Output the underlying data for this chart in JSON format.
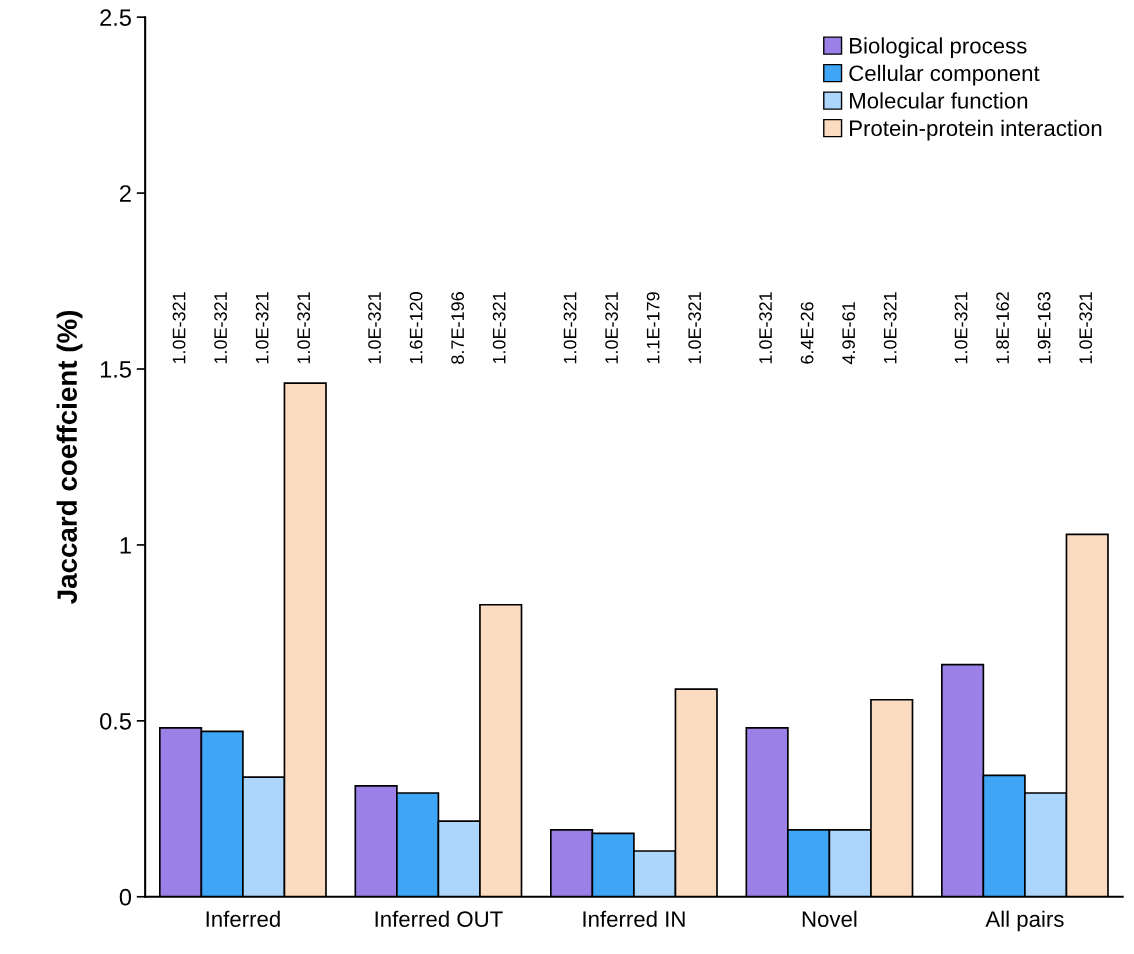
{
  "chart_data": {
    "type": "bar",
    "ylabel": "Jaccard coeffcient (%)",
    "categories": [
      "Inferred",
      "Inferred OUT",
      "Inferred IN",
      "Novel",
      "All pairs"
    ],
    "series": [
      {
        "name": "Biological process",
        "color": "#9b80e8",
        "values": [
          0.48,
          0.315,
          0.19,
          0.48,
          0.66
        ]
      },
      {
        "name": "Cellular component",
        "color": "#3ea6f5",
        "values": [
          0.47,
          0.295,
          0.18,
          0.19,
          0.345
        ]
      },
      {
        "name": "Molecular function",
        "color": "#acd6fb",
        "values": [
          0.34,
          0.215,
          0.13,
          0.19,
          0.295
        ]
      },
      {
        "name": "Protein-protein interaction",
        "color": "#fcdcc1",
        "values": [
          1.46,
          0.83,
          0.59,
          0.56,
          1.03
        ]
      }
    ],
    "annotations": [
      "1.0E-321",
      "1.0E-321",
      "1.0E-321",
      "1.0E-321",
      "1.0E-321",
      "1.6E-120",
      "8.7E-196",
      "1.0E-321",
      "1.0E-321",
      "1.0E-321",
      "1.1E-179",
      "1.0E-321",
      "1.0E-321",
      "6.4E-26",
      "4.9E-61",
      "1.0E-321",
      "1.0E-321",
      "1.8E-162",
      "1.9E-163",
      "1.0E-321"
    ],
    "ylim": [
      0,
      2.5
    ],
    "yticks": [
      0,
      0.5,
      1,
      1.5,
      2,
      2.5
    ],
    "grid": false,
    "legend": "top right"
  }
}
